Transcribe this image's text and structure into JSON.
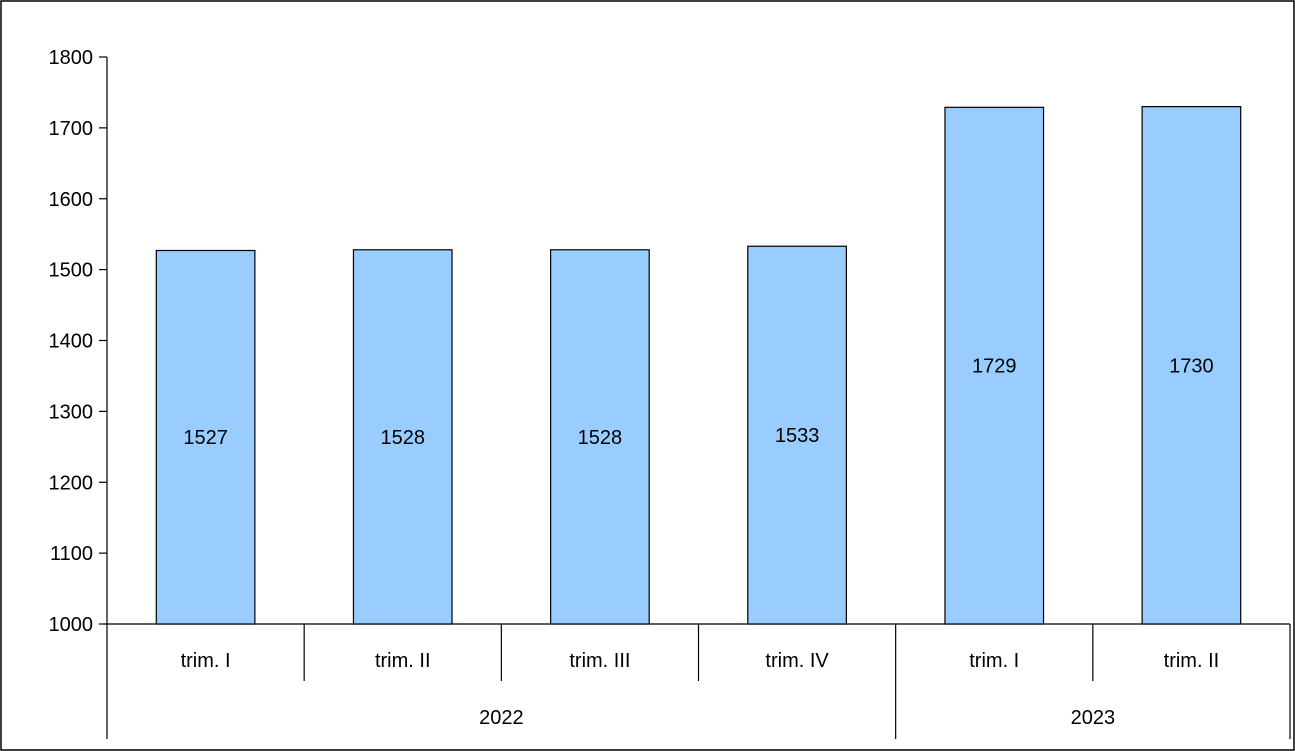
{
  "chart_data": {
    "type": "bar",
    "title": "",
    "xlabel": "",
    "ylabel": "",
    "ylim": [
      1000,
      1800
    ],
    "yticks": [
      1000,
      1100,
      1200,
      1300,
      1400,
      1500,
      1600,
      1700,
      1800
    ],
    "grid": false,
    "legend": "none",
    "bar_color": "#99ccff",
    "categories": [
      "trim. I",
      "trim. II",
      "trim. III",
      "trim. IV",
      "trim. I",
      "trim. II"
    ],
    "groups": [
      {
        "label": "2022",
        "count": 4
      },
      {
        "label": "2023",
        "count": 2
      }
    ],
    "series": [
      {
        "values": [
          1527,
          1528,
          1528,
          1533,
          1729,
          1730
        ]
      }
    ],
    "data_labels": [
      "1527",
      "1528",
      "1528",
      "1533",
      "1729",
      "1730"
    ]
  }
}
